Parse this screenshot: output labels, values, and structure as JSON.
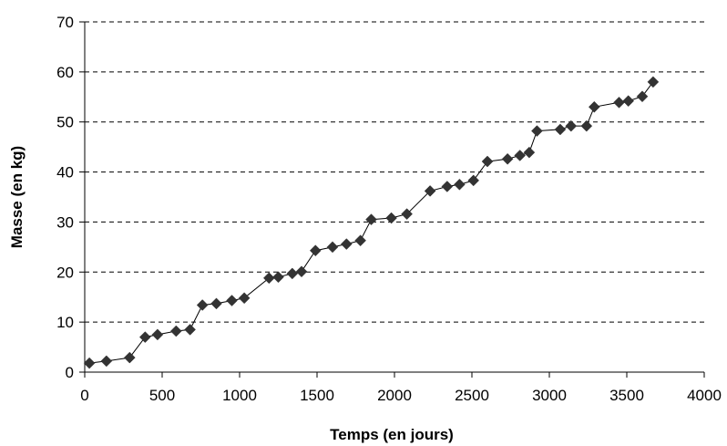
{
  "chart_data": {
    "type": "line",
    "xlabel": "Temps (en jours)",
    "ylabel": "Masse (en kg)",
    "xlim": [
      0,
      4000
    ],
    "ylim": [
      0,
      70
    ],
    "x_ticks": [
      0,
      500,
      1000,
      1500,
      2000,
      2500,
      3000,
      3500,
      4000
    ],
    "y_ticks": [
      0,
      10,
      20,
      30,
      40,
      50,
      60,
      70
    ],
    "grid": "horizontal-dashed",
    "marker": "diamond",
    "line_color": "#000000",
    "marker_color": "#333333",
    "series": [
      {
        "x": [
          30,
          140,
          290,
          390,
          470,
          590,
          680,
          760,
          850,
          950,
          1030,
          1190,
          1250,
          1340,
          1400,
          1490,
          1600,
          1690,
          1780,
          1850,
          1980,
          2080,
          2230,
          2340,
          2420,
          2510,
          2600,
          2730,
          2810,
          2870,
          2920,
          3070,
          3140,
          3240,
          3290,
          3450,
          3510,
          3600,
          3670
        ],
        "y": [
          1.8,
          2.2,
          2.9,
          7.0,
          7.5,
          8.2,
          8.5,
          13.4,
          13.7,
          14.3,
          14.8,
          18.8,
          19.0,
          19.7,
          20.1,
          24.3,
          25.0,
          25.6,
          26.3,
          30.5,
          30.8,
          31.6,
          36.2,
          37.1,
          37.5,
          38.3,
          42.1,
          42.6,
          43.3,
          43.9,
          48.2,
          48.5,
          49.2,
          49.2,
          53.0,
          53.9,
          54.2,
          55.1,
          58.0
        ]
      }
    ]
  }
}
